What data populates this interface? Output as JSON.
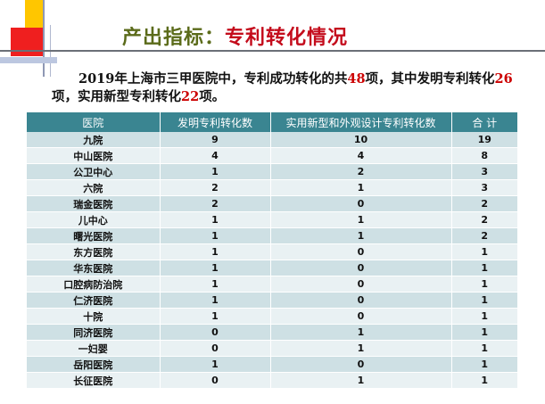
{
  "title": {
    "prefix": "产出指标：",
    "main": "专利转化情况"
  },
  "intro": {
    "p1": "2019年上海市三甲医院中，专利成功转化的共",
    "total": "48",
    "p2": "项，其中发明专利转化",
    "invention": "26",
    "p3": "项，实用新型专利转化",
    "utility": "22",
    "p4": "项。"
  },
  "table": {
    "headers": [
      "医院",
      "发明专利转化数",
      "实用新型和外观设计专利转化数",
      "合 计"
    ],
    "rows": [
      [
        "九院",
        "9",
        "10",
        "19"
      ],
      [
        "中山医院",
        "4",
        "4",
        "8"
      ],
      [
        "公卫中心",
        "1",
        "2",
        "3"
      ],
      [
        "六院",
        "2",
        "1",
        "3"
      ],
      [
        "瑞金医院",
        "2",
        "0",
        "2"
      ],
      [
        "儿中心",
        "1",
        "1",
        "2"
      ],
      [
        "曙光医院",
        "1",
        "1",
        "2"
      ],
      [
        "东方医院",
        "1",
        "0",
        "1"
      ],
      [
        "华东医院",
        "1",
        "0",
        "1"
      ],
      [
        "口腔病防治院",
        "1",
        "0",
        "1"
      ],
      [
        "仁济医院",
        "1",
        "0",
        "1"
      ],
      [
        "十院",
        "1",
        "0",
        "1"
      ],
      [
        "同济医院",
        "0",
        "1",
        "1"
      ],
      [
        "一妇婴",
        "0",
        "1",
        "1"
      ],
      [
        "岳阳医院",
        "1",
        "0",
        "1"
      ],
      [
        "长征医院",
        "0",
        "1",
        "1"
      ]
    ]
  }
}
